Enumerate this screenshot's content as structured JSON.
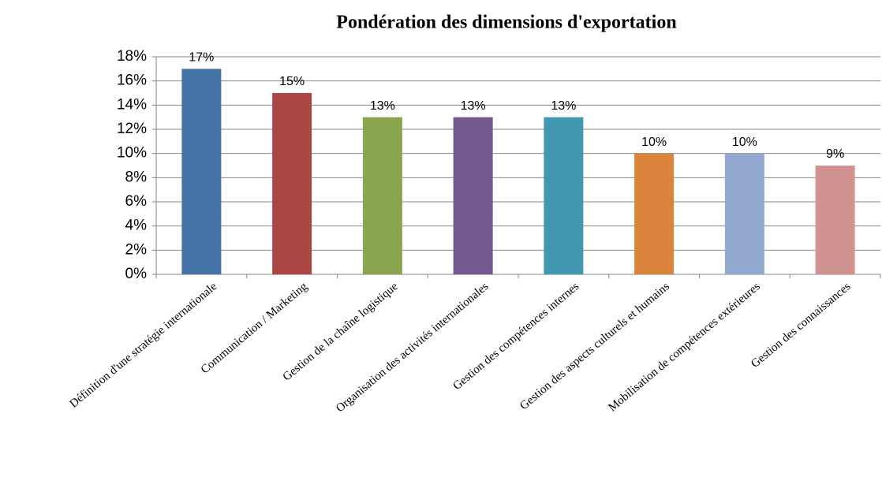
{
  "chart_data": {
    "type": "bar",
    "title": "Pondération des dimensions d'exportation",
    "categories": [
      "Définition d'une stratégie internationale",
      "Communication / Marketing",
      "Gestion de la chaîne logistique",
      "Organisation des activités internationales",
      "Gestion des compétences internes",
      "Gestion des aspects culturels et humains",
      "Mobilisation de compétences extérieures",
      "Gestion des connaissances"
    ],
    "values": [
      17,
      15,
      13,
      13,
      13,
      10,
      10,
      9
    ],
    "value_labels": [
      "17%",
      "15%",
      "13%",
      "13%",
      "13%",
      "10%",
      "10%",
      "9%"
    ],
    "colors": [
      "#4572a7",
      "#aa4643",
      "#89a54e",
      "#71588f",
      "#4198af",
      "#db843d",
      "#93a9cf",
      "#d19392"
    ],
    "ylim": [
      0,
      18
    ],
    "yticks": [
      {
        "value": 0,
        "label": "0%"
      },
      {
        "value": 2,
        "label": "2%"
      },
      {
        "value": 4,
        "label": "4%"
      },
      {
        "value": 6,
        "label": "6%"
      },
      {
        "value": 8,
        "label": "8%"
      },
      {
        "value": 10,
        "label": "10%"
      },
      {
        "value": 12,
        "label": "12%"
      },
      {
        "value": 14,
        "label": "14%"
      },
      {
        "value": 16,
        "label": "16%"
      },
      {
        "value": 18,
        "label": "18%"
      }
    ],
    "grid": true
  }
}
